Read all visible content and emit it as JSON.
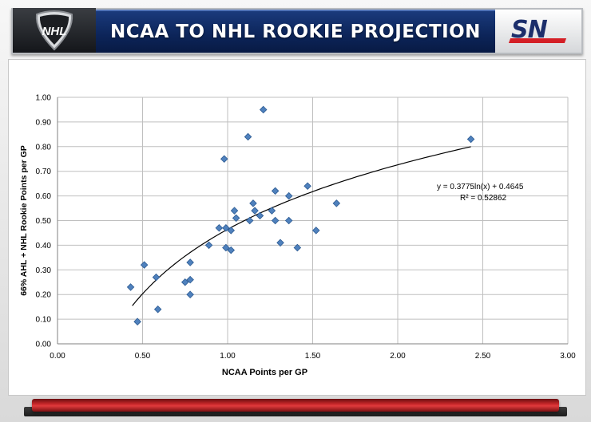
{
  "header": {
    "title": "NCAA TO NHL ROOKIE PROJECTION",
    "left_logo_text": "NHL",
    "right_logo_text": "SN"
  },
  "colors": {
    "title_band": "#0c2458",
    "marker": "#4f81bd",
    "marker_stroke": "#2e5c93",
    "trendline": "#000000",
    "grid": "#bfbfbf",
    "accent_red": "#c7272a"
  },
  "chart_data": {
    "type": "scatter",
    "xlabel": "NCAA Points per GP",
    "ylabel": "66% AHL + NHL Rookie Points per GP",
    "xlim": [
      0,
      3
    ],
    "ylim": [
      0,
      1
    ],
    "xticks": [
      "0.00",
      "0.50",
      "1.00",
      "1.50",
      "2.00",
      "2.50",
      "3.00"
    ],
    "yticks": [
      "0.00",
      "0.10",
      "0.20",
      "0.30",
      "0.40",
      "0.50",
      "0.60",
      "0.70",
      "0.80",
      "0.90",
      "1.00"
    ],
    "grid": true,
    "marker": "diamond",
    "points": [
      [
        0.43,
        0.23
      ],
      [
        0.47,
        0.09
      ],
      [
        0.51,
        0.32
      ],
      [
        0.58,
        0.27
      ],
      [
        0.59,
        0.14
      ],
      [
        0.75,
        0.25
      ],
      [
        0.78,
        0.2
      ],
      [
        0.78,
        0.26
      ],
      [
        0.78,
        0.33
      ],
      [
        0.89,
        0.4
      ],
      [
        0.95,
        0.47
      ],
      [
        0.98,
        0.75
      ],
      [
        0.99,
        0.47
      ],
      [
        0.99,
        0.39
      ],
      [
        1.02,
        0.38
      ],
      [
        1.02,
        0.46
      ],
      [
        1.04,
        0.54
      ],
      [
        1.05,
        0.51
      ],
      [
        1.12,
        0.84
      ],
      [
        1.13,
        0.5
      ],
      [
        1.15,
        0.57
      ],
      [
        1.16,
        0.54
      ],
      [
        1.19,
        0.52
      ],
      [
        1.21,
        0.95
      ],
      [
        1.26,
        0.54
      ],
      [
        1.28,
        0.62
      ],
      [
        1.28,
        0.5
      ],
      [
        1.31,
        0.41
      ],
      [
        1.36,
        0.6
      ],
      [
        1.36,
        0.5
      ],
      [
        1.41,
        0.39
      ],
      [
        1.47,
        0.64
      ],
      [
        1.52,
        0.46
      ],
      [
        1.64,
        0.57
      ],
      [
        2.43,
        0.83
      ]
    ],
    "trendline": {
      "type": "logarithmic",
      "a": 0.3775,
      "b": 0.4645,
      "x_range": [
        0.44,
        2.43
      ],
      "equation": "y = 0.3775ln(x) + 0.4645",
      "r2_label": "R² = 0.52862"
    }
  }
}
